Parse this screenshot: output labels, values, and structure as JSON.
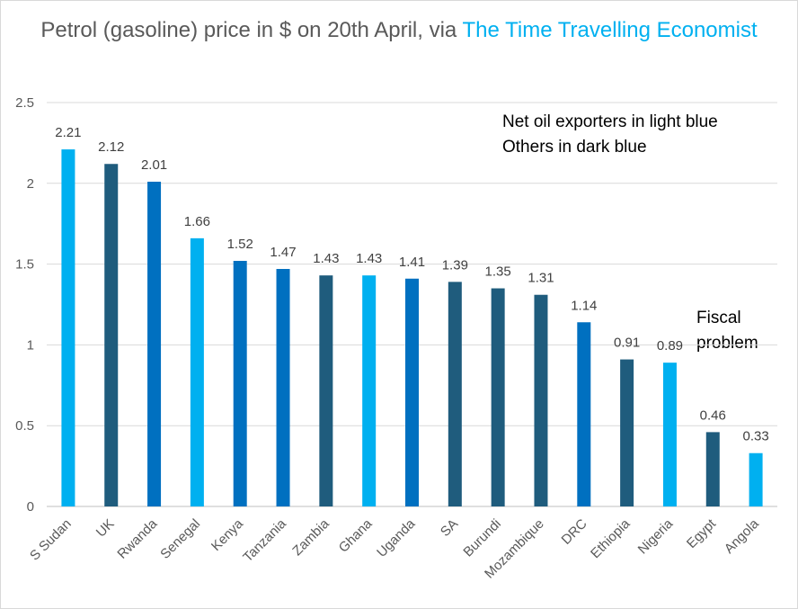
{
  "chart_data": {
    "type": "bar",
    "title_main": "Petrol (gasoline) price in $ on 20th April, via ",
    "title_accent": "The Time Travelling Economist",
    "xlabel": "",
    "ylabel": "",
    "ylim": [
      0,
      2.5
    ],
    "y_ticks": [
      "0",
      "0.5",
      "1",
      "1.5",
      "2",
      "2.5"
    ],
    "grid": true,
    "legend_note": [
      "Net oil exporters in light blue",
      "Others in dark blue"
    ],
    "annotation": "Fiscal problem",
    "categories": [
      "S Sudan",
      "UK",
      "Rwanda",
      "Senegal",
      "Kenya",
      "Tanzania",
      "Zambia",
      "Ghana",
      "Uganda",
      "SA",
      "Burundi",
      "Mozambique",
      "DRC",
      "Ethiopia",
      "Nigeria",
      "Egypt",
      "Angola"
    ],
    "values": [
      2.21,
      2.12,
      2.01,
      1.66,
      1.52,
      1.47,
      1.43,
      1.43,
      1.41,
      1.39,
      1.35,
      1.31,
      1.14,
      0.91,
      0.89,
      0.46,
      0.33
    ],
    "data_labels": [
      "2.21",
      "2.12",
      "2.01",
      "1.66",
      "1.52",
      "1.47",
      "1.43",
      "1.43",
      "1.41",
      "1.39",
      "1.35",
      "1.31",
      "1.14",
      "0.91",
      "0.89",
      "0.46",
      "0.33"
    ],
    "bar_colors": [
      "#00b0f0",
      "#1f5c7d",
      "#0070c0",
      "#00b0f0",
      "#0070c0",
      "#0070c0",
      "#1f5c7d",
      "#00b0f0",
      "#0070c0",
      "#1f5c7d",
      "#1f5c7d",
      "#1f5c7d",
      "#0070c0",
      "#1f5c7d",
      "#00b0f0",
      "#1f5c7d",
      "#00b0f0"
    ]
  }
}
